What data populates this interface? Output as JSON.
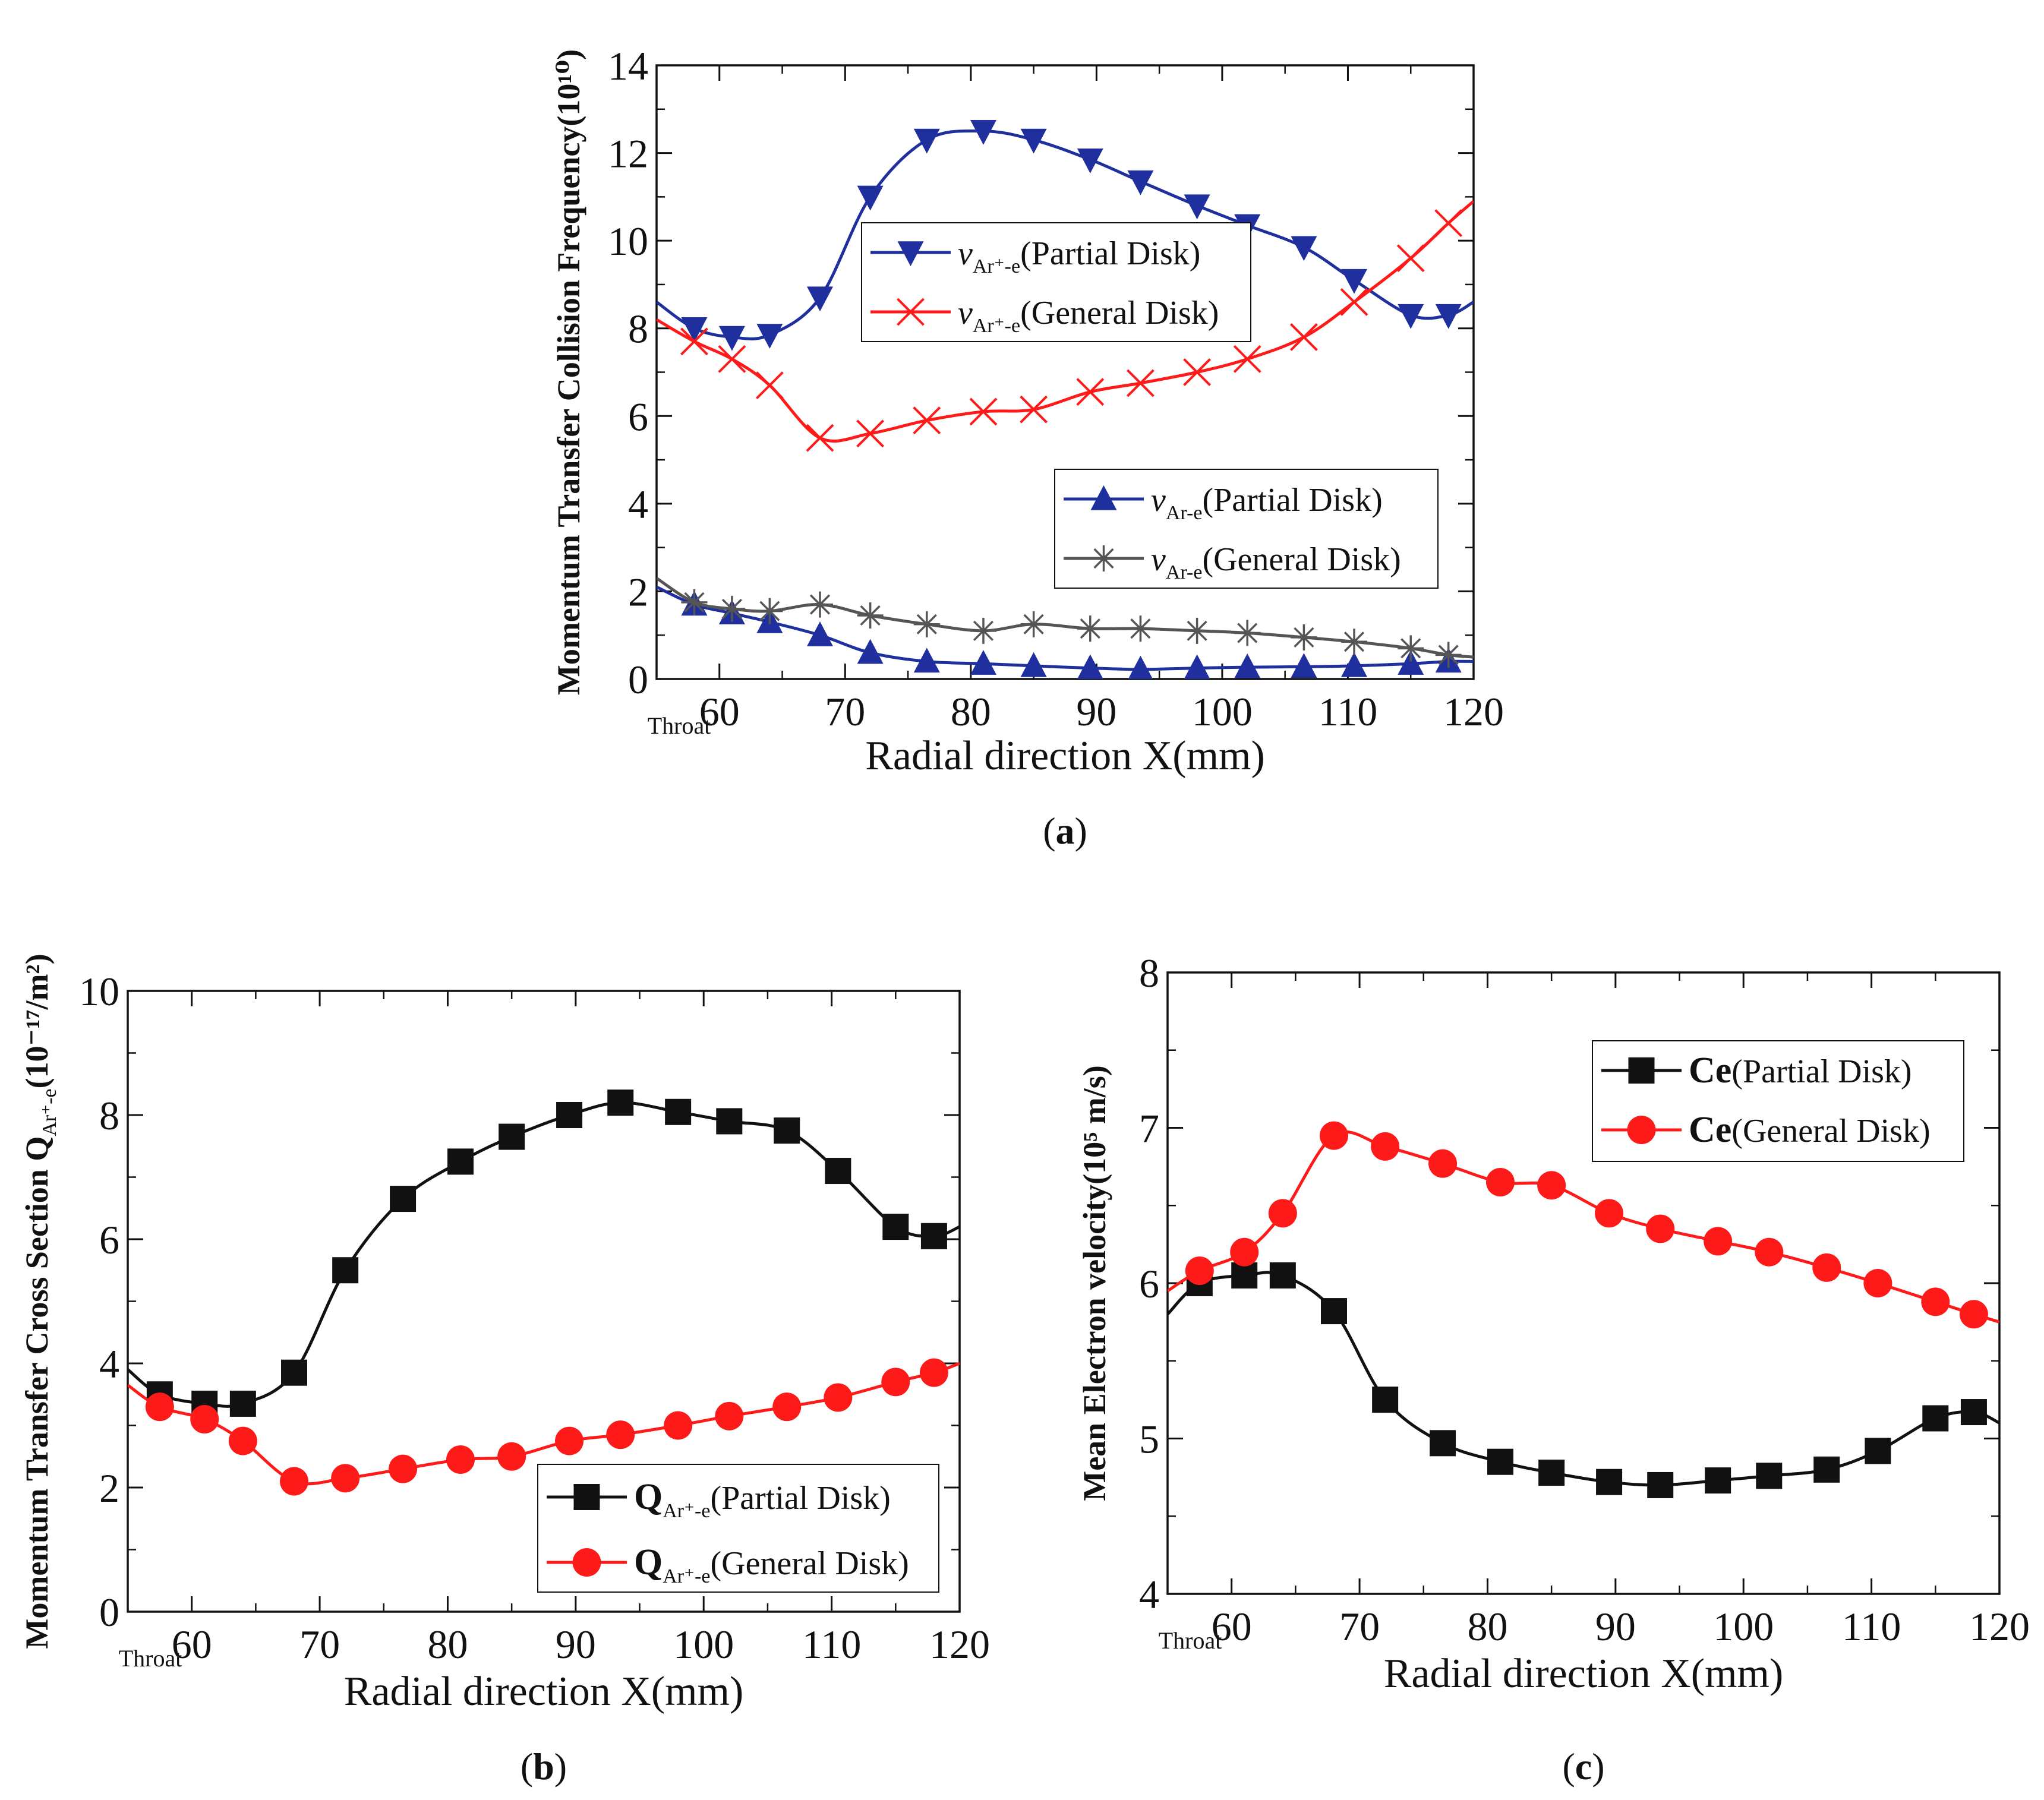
{
  "chart_data": [
    {
      "id": "a",
      "type": "line",
      "panel_label": "a",
      "x_axis": {
        "label": "Radial direction X(mm)",
        "range": [
          55,
          120
        ],
        "ticks": [
          60,
          70,
          80,
          90,
          100,
          110,
          120
        ],
        "start_label": "Throat"
      },
      "y_axis": {
        "label": "Momentum Transfer Collision Frequency(10¹⁰)",
        "range": [
          0,
          14
        ],
        "ticks": [
          0,
          2,
          4,
          6,
          8,
          10,
          12,
          14
        ]
      },
      "legends": [
        {
          "position": "upper-middle",
          "entries": [
            0,
            1
          ]
        },
        {
          "position": "lower-right",
          "entries": [
            2,
            3
          ]
        }
      ],
      "series": [
        {
          "name": "ν",
          "sub": "Ar⁺-e",
          "suffix": "(Partial Disk)",
          "color": "#1f2f9e",
          "marker": "triangle-down",
          "x": [
            55,
            58,
            61,
            64,
            68,
            72,
            76.5,
            81,
            85,
            89.5,
            93.5,
            98,
            102,
            106.5,
            110.5,
            115,
            118,
            120
          ],
          "y": [
            8.6,
            8.0,
            7.8,
            7.85,
            8.7,
            11.0,
            12.3,
            12.5,
            12.3,
            11.85,
            11.35,
            10.8,
            10.35,
            9.85,
            9.1,
            8.3,
            8.3,
            8.6
          ]
        },
        {
          "name": "ν",
          "sub": "Ar⁺-e",
          "suffix": "(General Disk)",
          "color": "#ff1a1a",
          "marker": "x",
          "x": [
            55,
            58,
            61,
            64,
            68,
            72,
            76.5,
            81,
            85,
            89.5,
            93.5,
            98,
            102,
            106.5,
            110.5,
            115,
            118,
            120
          ],
          "y": [
            8.2,
            7.7,
            7.3,
            6.7,
            5.5,
            5.6,
            5.9,
            6.1,
            6.15,
            6.55,
            6.75,
            7.0,
            7.3,
            7.8,
            8.6,
            9.6,
            10.4,
            10.9
          ]
        },
        {
          "name": "ν",
          "sub": "Ar-e",
          "suffix": "(Partial Disk)",
          "color": "#1f2f9e",
          "marker": "triangle-up",
          "x": [
            55,
            58,
            61,
            64,
            68,
            72,
            76.5,
            81,
            85,
            89.5,
            93.5,
            98,
            102,
            106.5,
            110.5,
            115,
            118,
            120
          ],
          "y": [
            2.1,
            1.7,
            1.5,
            1.3,
            1.0,
            0.6,
            0.4,
            0.35,
            0.3,
            0.25,
            0.22,
            0.25,
            0.27,
            0.28,
            0.3,
            0.35,
            0.4,
            0.4
          ]
        },
        {
          "name": "ν",
          "sub": "Ar-e",
          "suffix": "(General Disk)",
          "color": "#555555",
          "marker": "asterisk",
          "x": [
            55,
            58,
            61,
            64,
            68,
            72,
            76.5,
            81,
            85,
            89.5,
            93.5,
            98,
            102,
            106.5,
            110.5,
            115,
            118,
            120
          ],
          "y": [
            2.3,
            1.75,
            1.6,
            1.55,
            1.7,
            1.45,
            1.25,
            1.1,
            1.25,
            1.15,
            1.15,
            1.1,
            1.05,
            0.95,
            0.85,
            0.7,
            0.55,
            0.5
          ]
        }
      ]
    },
    {
      "id": "b",
      "type": "line",
      "panel_label": "b",
      "x_axis": {
        "label": "Radial direction X(mm)",
        "range": [
          55,
          120
        ],
        "ticks": [
          60,
          70,
          80,
          90,
          100,
          110,
          120
        ],
        "start_label": "Throat"
      },
      "y_axis": {
        "label": "Momentum Transfer Cross Section  Q",
        "label_sub": "Ar⁺-e",
        "label_tail": "(10⁻¹⁷/m²)",
        "range": [
          0,
          10
        ],
        "ticks": [
          0,
          2,
          4,
          6,
          8,
          10
        ]
      },
      "legends": [
        {
          "position": "lower-right",
          "entries": [
            0,
            1
          ]
        }
      ],
      "series": [
        {
          "name": "Q",
          "sub": "Ar⁺-e",
          "suffix": "(Partial Disk)",
          "color": "#111111",
          "marker": "square",
          "x": [
            55,
            57.5,
            61,
            64,
            68,
            72,
            76.5,
            81,
            85,
            89.5,
            93.5,
            98,
            102,
            106.5,
            110.5,
            115,
            118,
            120
          ],
          "y": [
            3.9,
            3.5,
            3.35,
            3.35,
            3.85,
            5.5,
            6.65,
            7.25,
            7.65,
            8.0,
            8.2,
            8.05,
            7.9,
            7.75,
            7.1,
            6.2,
            6.05,
            6.2
          ]
        },
        {
          "name": "Q",
          "sub": "Ar⁺-e",
          "suffix": "(General Disk)",
          "color": "#ff1a1a",
          "marker": "circle",
          "x": [
            55,
            57.5,
            61,
            64,
            68,
            72,
            76.5,
            81,
            85,
            89.5,
            93.5,
            98,
            102,
            106.5,
            110.5,
            115,
            118,
            120
          ],
          "y": [
            3.65,
            3.3,
            3.1,
            2.75,
            2.1,
            2.15,
            2.3,
            2.45,
            2.5,
            2.75,
            2.85,
            3.0,
            3.15,
            3.3,
            3.45,
            3.7,
            3.85,
            4.0
          ]
        }
      ]
    },
    {
      "id": "c",
      "type": "line",
      "panel_label": "c",
      "x_axis": {
        "label": "Radial direction X(mm)",
        "range": [
          55,
          120
        ],
        "ticks": [
          60,
          70,
          80,
          90,
          100,
          110,
          120
        ],
        "start_label": "Throat"
      },
      "y_axis": {
        "label": "Mean Electron velocity(10⁵ m/s)",
        "range": [
          4,
          8
        ],
        "ticks": [
          4,
          5,
          6,
          7,
          8
        ]
      },
      "legends": [
        {
          "position": "upper-right",
          "entries": [
            0,
            1
          ]
        }
      ],
      "series": [
        {
          "name": "Ce",
          "sub": "",
          "suffix": "(Partial Disk)",
          "color": "#111111",
          "marker": "square",
          "x": [
            55,
            57.5,
            61,
            64,
            68,
            72,
            76.5,
            81,
            85,
            89.5,
            93.5,
            98,
            102,
            106.5,
            110.5,
            115,
            118,
            120
          ],
          "y": [
            5.8,
            6.0,
            6.05,
            6.05,
            5.82,
            5.25,
            4.97,
            4.85,
            4.78,
            4.72,
            4.7,
            4.73,
            4.76,
            4.8,
            4.92,
            5.13,
            5.17,
            5.1
          ]
        },
        {
          "name": "Ce",
          "sub": "",
          "suffix": "(General Disk)",
          "color": "#ff1a1a",
          "marker": "circle",
          "x": [
            55,
            57.5,
            61,
            64,
            68,
            72,
            76.5,
            81,
            85,
            89.5,
            93.5,
            98,
            102,
            106.5,
            110.5,
            115,
            118,
            120
          ],
          "y": [
            5.95,
            6.08,
            6.2,
            6.45,
            6.95,
            6.88,
            6.77,
            6.65,
            6.63,
            6.45,
            6.35,
            6.27,
            6.2,
            6.1,
            6.0,
            5.88,
            5.8,
            5.75
          ]
        }
      ]
    }
  ]
}
